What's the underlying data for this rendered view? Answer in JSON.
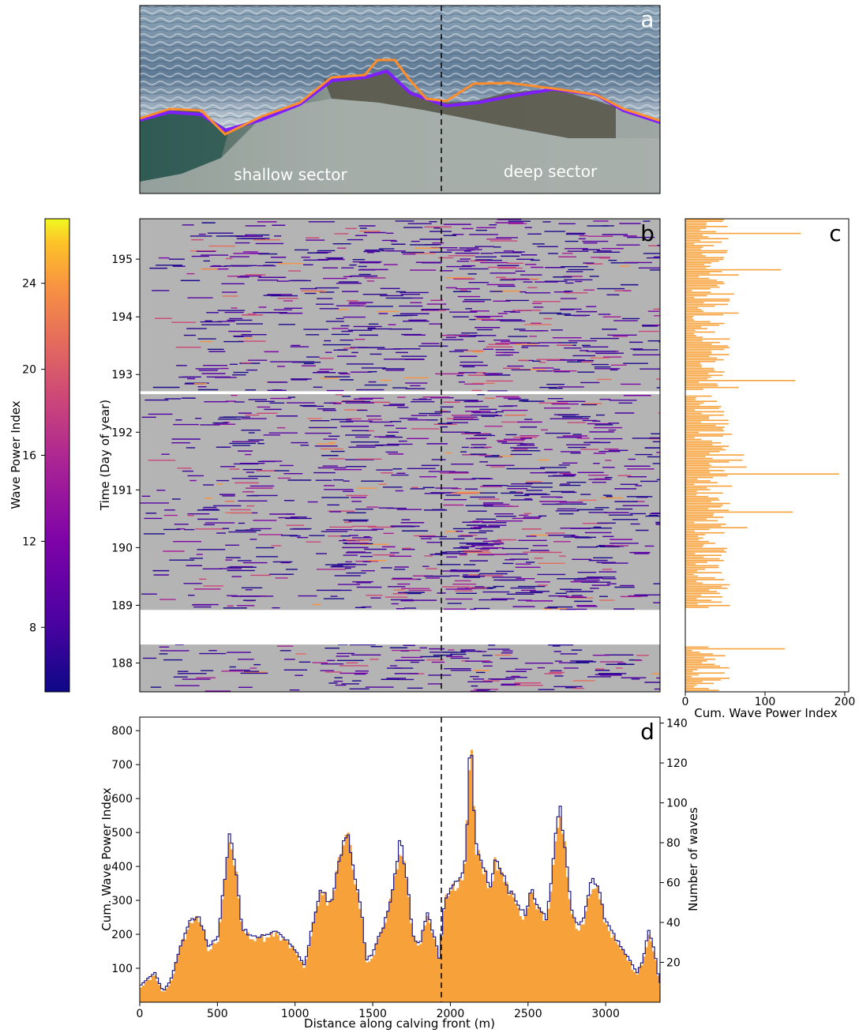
{
  "colors": {
    "axis": "#000000",
    "bar_orange": "#f7a13a",
    "line_navy": "#1f1a8a",
    "panel_gray": "#b4b4b4",
    "gap_white": "#ffffff",
    "front_orange": "#ff8c2a",
    "front_purple": "#7f1fff"
  },
  "panels": {
    "a": {
      "letter": "a",
      "shallow_label": "shallow sector",
      "deep_label": "deep sector"
    },
    "b": {
      "letter": "b"
    },
    "c": {
      "letter": "c"
    },
    "d": {
      "letter": "d"
    }
  },
  "chart_data": [
    {
      "panel": "b",
      "type": "heatmap",
      "ylabel": "Time (Day of year)",
      "yticks": [
        188,
        189,
        190,
        191,
        192,
        193,
        194,
        195
      ],
      "ylim": [
        187.5,
        195.7
      ],
      "xlim": [
        0,
        3350
      ],
      "divider_x": 1940,
      "gaps": [
        [
          188.32,
          188.92
        ],
        [
          192.66,
          192.71
        ]
      ],
      "colorbar": {
        "label": "Wave Power Index",
        "ticks": [
          8,
          12,
          16,
          20,
          24
        ],
        "range": [
          5,
          27
        ],
        "colormap": "plasma"
      }
    },
    {
      "panel": "c",
      "type": "bar",
      "orientation": "horizontal",
      "xlabel": "Cum. Wave Power Index",
      "xticks": [
        0,
        100,
        200
      ],
      "xlim": [
        0,
        205
      ],
      "ylim": [
        187.5,
        195.7
      ],
      "spikes": [
        {
          "y": 195.45,
          "value": 145
        },
        {
          "y": 194.8,
          "value": 120
        },
        {
          "y": 192.9,
          "value": 138
        },
        {
          "y": 191.27,
          "value": 193
        },
        {
          "y": 190.6,
          "value": 135
        },
        {
          "y": 188.25,
          "value": 125
        }
      ]
    },
    {
      "panel": "d",
      "type": "bar",
      "xlabel": "Distance along calving front (m)",
      "ylabel": "Cum. Wave Power Index",
      "y2label": "Number of waves",
      "xticks": [
        0,
        500,
        1000,
        1500,
        2000,
        2500,
        3000
      ],
      "yticks": [
        100,
        200,
        300,
        400,
        500,
        600,
        700,
        800
      ],
      "y2ticks": [
        20,
        40,
        60,
        80,
        100,
        120,
        140
      ],
      "xlim": [
        0,
        3350
      ],
      "ylim": [
        0,
        840
      ],
      "y2lim": [
        0,
        143
      ],
      "divider_x": 1940,
      "profile": [
        [
          0,
          40
        ],
        [
          40,
          60
        ],
        [
          100,
          80
        ],
        [
          150,
          25
        ],
        [
          200,
          60
        ],
        [
          260,
          160
        ],
        [
          320,
          230
        ],
        [
          380,
          250
        ],
        [
          440,
          160
        ],
        [
          500,
          180
        ],
        [
          540,
          330
        ],
        [
          580,
          490
        ],
        [
          620,
          380
        ],
        [
          660,
          210
        ],
        [
          720,
          190
        ],
        [
          800,
          190
        ],
        [
          880,
          200
        ],
        [
          950,
          175
        ],
        [
          1000,
          150
        ],
        [
          1060,
          100
        ],
        [
          1120,
          240
        ],
        [
          1170,
          330
        ],
        [
          1230,
          280
        ],
        [
          1290,
          430
        ],
        [
          1340,
          490
        ],
        [
          1390,
          360
        ],
        [
          1430,
          250
        ],
        [
          1460,
          120
        ],
        [
          1500,
          140
        ],
        [
          1570,
          220
        ],
        [
          1620,
          310
        ],
        [
          1680,
          480
        ],
        [
          1720,
          360
        ],
        [
          1760,
          190
        ],
        [
          1800,
          160
        ],
        [
          1850,
          260
        ],
        [
          1890,
          200
        ],
        [
          1930,
          120
        ],
        [
          1960,
          290
        ],
        [
          2000,
          330
        ],
        [
          2060,
          350
        ],
        [
          2100,
          420
        ],
        [
          2130,
          800
        ],
        [
          2160,
          470
        ],
        [
          2200,
          420
        ],
        [
          2260,
          330
        ],
        [
          2290,
          430
        ],
        [
          2330,
          380
        ],
        [
          2380,
          320
        ],
        [
          2430,
          290
        ],
        [
          2480,
          250
        ],
        [
          2520,
          330
        ],
        [
          2560,
          280
        ],
        [
          2620,
          240
        ],
        [
          2660,
          400
        ],
        [
          2700,
          580
        ],
        [
          2740,
          450
        ],
        [
          2780,
          270
        ],
        [
          2820,
          220
        ],
        [
          2860,
          240
        ],
        [
          2910,
          360
        ],
        [
          2960,
          320
        ],
        [
          3000,
          230
        ],
        [
          3040,
          200
        ],
        [
          3100,
          160
        ],
        [
          3150,
          120
        ],
        [
          3200,
          80
        ],
        [
          3240,
          120
        ],
        [
          3280,
          210
        ],
        [
          3320,
          130
        ],
        [
          3350,
          40
        ]
      ]
    }
  ]
}
